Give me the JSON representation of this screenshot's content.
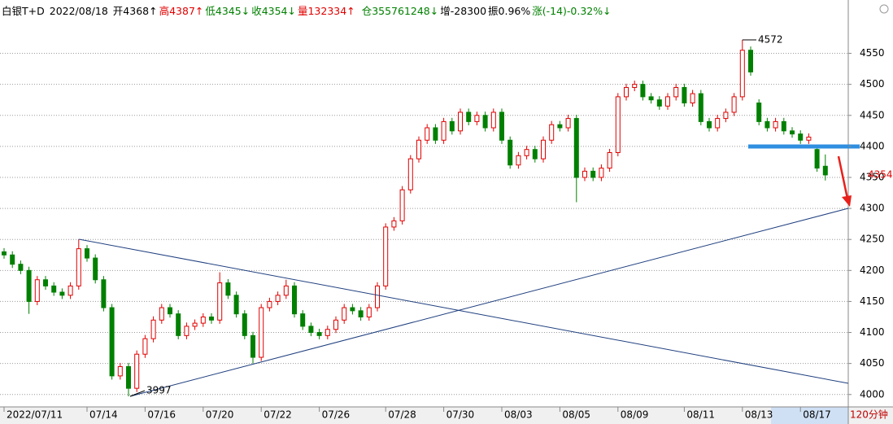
{
  "chart_data": {
    "type": "candlestick",
    "instrument": "白银T+D",
    "date": "2022/08/18",
    "header": [
      {
        "text": "开4368↑",
        "color": "#000000"
      },
      {
        "text": "高4387↑",
        "color": "#e00000"
      },
      {
        "text": "低4345↓",
        "color": "#008000"
      },
      {
        "text": "收4354↓",
        "color": "#008000"
      },
      {
        "text": "量132334↑",
        "color": "#e00000"
      },
      {
        "text": "仓355761248↓",
        "color": "#008000"
      },
      {
        "text": "增-28300",
        "color": "#000000"
      },
      {
        "text": "振0.96%",
        "color": "#000000"
      },
      {
        "text": "涨(-14)-0.32%↓",
        "color": "#008000"
      }
    ],
    "period": "120分钟",
    "last_price": 4354,
    "annotations": [
      4572,
      3997
    ],
    "up_color": "#e00000",
    "down_color": "#008000",
    "grid": true,
    "ylim": [
      3980,
      4636
    ],
    "yticks": [
      4000,
      4050,
      4100,
      4150,
      4200,
      4250,
      4300,
      4350,
      4400,
      4450,
      4500,
      4550
    ],
    "categories": [
      "2022/07/11",
      null,
      null,
      null,
      null,
      null,
      null,
      null,
      null,
      null,
      "07/14",
      null,
      null,
      null,
      null,
      null,
      null,
      "07/16",
      null,
      null,
      null,
      null,
      null,
      null,
      "07/20",
      null,
      null,
      null,
      null,
      null,
      null,
      "07/22",
      null,
      null,
      null,
      null,
      null,
      null,
      "07/26",
      null,
      null,
      null,
      null,
      null,
      null,
      null,
      "07/28",
      null,
      null,
      null,
      null,
      null,
      null,
      "07/30",
      null,
      null,
      null,
      null,
      null,
      null,
      "08/03",
      null,
      null,
      null,
      null,
      null,
      null,
      "08/05",
      null,
      null,
      null,
      null,
      null,
      null,
      "08/09",
      null,
      null,
      null,
      null,
      null,
      null,
      null,
      "08/11",
      null,
      null,
      null,
      null,
      null,
      null,
      "08/13",
      null,
      null,
      null,
      null,
      null,
      null,
      "08/17",
      null,
      null,
      null
    ],
    "open": [
      4230,
      4225,
      4210,
      4200,
      4150,
      4185,
      4175,
      4165,
      4160,
      4175,
      4235,
      4220,
      4185,
      4140,
      4030,
      4045,
      4010,
      4065,
      4090,
      4120,
      4140,
      4130,
      4095,
      4110,
      4115,
      4125,
      4120,
      4180,
      4160,
      4130,
      4095,
      4060,
      4140,
      4150,
      4160,
      4175,
      4130,
      4110,
      4100,
      4095,
      4105,
      4120,
      4140,
      4135,
      4125,
      4140,
      4175,
      4270,
      4280,
      4330,
      4380,
      4410,
      4430,
      4410,
      4440,
      4425,
      4455,
      4440,
      4450,
      4430,
      4455,
      4410,
      4370,
      4385,
      4395,
      4380,
      4410,
      4435,
      4430,
      4445,
      4350,
      4360,
      4350,
      4365,
      4390,
      4480,
      4495,
      4500,
      4480,
      4475,
      4465,
      4480,
      4495,
      4470,
      4485,
      4440,
      4430,
      4445,
      4455,
      4480,
      4555,
      4470,
      4440,
      4430,
      4440,
      4425,
      4420,
      4410,
      4395,
      4368
    ],
    "high": [
      4236,
      4231,
      4216,
      4206,
      4191,
      4191,
      4181,
      4171,
      4181,
      4250,
      4241,
      4226,
      4191,
      4146,
      4051,
      4051,
      4071,
      4096,
      4126,
      4146,
      4146,
      4136,
      4116,
      4121,
      4131,
      4131,
      4197,
      4186,
      4166,
      4136,
      4101,
      4146,
      4156,
      4166,
      4185,
      4181,
      4136,
      4116,
      4106,
      4111,
      4126,
      4146,
      4146,
      4141,
      4146,
      4181,
      4276,
      4286,
      4336,
      4386,
      4416,
      4436,
      4436,
      4446,
      4446,
      4461,
      4461,
      4456,
      4456,
      4461,
      4461,
      4416,
      4391,
      4401,
      4401,
      4416,
      4441,
      4441,
      4451,
      4451,
      4366,
      4366,
      4371,
      4396,
      4486,
      4501,
      4506,
      4506,
      4486,
      4481,
      4486,
      4501,
      4501,
      4491,
      4491,
      4446,
      4451,
      4461,
      4486,
      4572,
      4561,
      4476,
      4446,
      4446,
      4446,
      4431,
      4426,
      4421,
      4401,
      4387
    ],
    "low": [
      4219,
      4204,
      4194,
      4130,
      4144,
      4169,
      4159,
      4154,
      4154,
      4169,
      4214,
      4179,
      4134,
      4024,
      4024,
      3997,
      4004,
      4059,
      4084,
      4114,
      4124,
      4089,
      4089,
      4104,
      4109,
      4114,
      4114,
      4154,
      4124,
      4089,
      4050,
      4054,
      4134,
      4144,
      4154,
      4124,
      4104,
      4094,
      4089,
      4089,
      4099,
      4114,
      4129,
      4119,
      4119,
      4134,
      4169,
      4264,
      4274,
      4324,
      4374,
      4404,
      4404,
      4404,
      4419,
      4419,
      4434,
      4434,
      4424,
      4424,
      4404,
      4364,
      4364,
      4379,
      4374,
      4374,
      4404,
      4424,
      4424,
      4310,
      4344,
      4344,
      4344,
      4359,
      4384,
      4474,
      4489,
      4474,
      4469,
      4459,
      4459,
      4474,
      4464,
      4464,
      4434,
      4424,
      4424,
      4439,
      4449,
      4474,
      4514,
      4434,
      4424,
      4424,
      4419,
      4414,
      4404,
      4404,
      4359,
      4345
    ],
    "close": [
      4225,
      4210,
      4200,
      4150,
      4185,
      4175,
      4165,
      4160,
      4175,
      4235,
      4220,
      4185,
      4140,
      4030,
      4045,
      4010,
      4065,
      4090,
      4120,
      4140,
      4130,
      4095,
      4110,
      4115,
      4125,
      4120,
      4180,
      4160,
      4130,
      4095,
      4060,
      4140,
      4150,
      4160,
      4175,
      4130,
      4110,
      4100,
      4095,
      4105,
      4120,
      4140,
      4135,
      4125,
      4140,
      4175,
      4270,
      4280,
      4330,
      4380,
      4410,
      4430,
      4410,
      4440,
      4425,
      4455,
      4440,
      4450,
      4430,
      4455,
      4410,
      4370,
      4385,
      4395,
      4380,
      4410,
      4435,
      4430,
      4445,
      4350,
      4360,
      4350,
      4365,
      4390,
      4480,
      4495,
      4500,
      4480,
      4475,
      4465,
      4480,
      4495,
      4470,
      4485,
      4440,
      4430,
      4445,
      4455,
      4480,
      4555,
      4520,
      4440,
      4430,
      4440,
      4425,
      4420,
      4410,
      4415,
      4365,
      4354
    ]
  }
}
